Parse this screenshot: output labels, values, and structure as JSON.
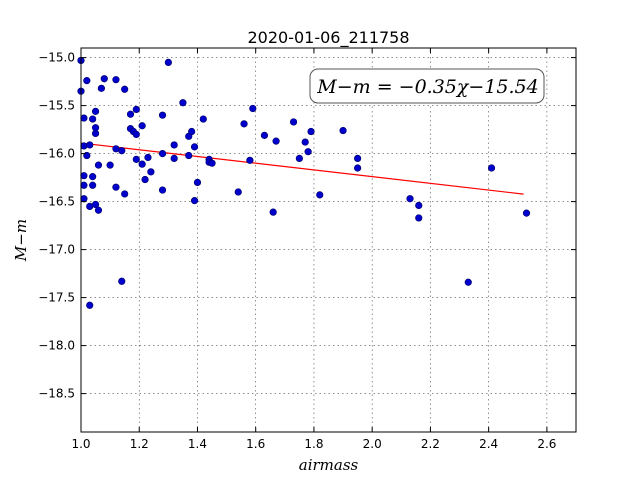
{
  "chart_data": {
    "type": "scatter",
    "title": "2020-01-06_211758",
    "xlabel": "airmass",
    "ylabel": "M−m",
    "xlim": [
      1.0,
      2.7
    ],
    "ylim": [
      -18.9,
      -14.9
    ],
    "y_inverted": true,
    "grid": true,
    "x_ticks": [
      1.0,
      1.2,
      1.4,
      1.6,
      1.8,
      2.0,
      2.2,
      2.4,
      2.6
    ],
    "x_tick_labels": [
      "1.0",
      "1.2",
      "1.4",
      "1.6",
      "1.8",
      "2.0",
      "2.2",
      "2.4",
      "2.6"
    ],
    "y_ticks": [
      -15.0,
      -15.5,
      -16.0,
      -16.5,
      -17.0,
      -17.5,
      -18.0,
      -18.5
    ],
    "y_tick_labels": [
      "−15.0",
      "−15.5",
      "−16.0",
      "−16.5",
      "−17.0",
      "−17.5",
      "−18.0",
      "−18.5"
    ],
    "annotation": "M−m = −0.35χ−15.54",
    "annotation_placement": "top-right",
    "fit": {
      "slope": -0.35,
      "intercept": -15.54,
      "x_range": [
        1.0,
        2.52
      ],
      "color": "#ff0000"
    },
    "series": [
      {
        "color": "#0000cc",
        "points": [
          [
            1.0,
            -15.03
          ],
          [
            1.0,
            -15.35
          ],
          [
            1.01,
            -15.63
          ],
          [
            1.01,
            -15.92
          ],
          [
            1.01,
            -16.23
          ],
          [
            1.01,
            -16.33
          ],
          [
            1.01,
            -16.47
          ],
          [
            1.02,
            -16.02
          ],
          [
            1.02,
            -15.24
          ],
          [
            1.03,
            -15.91
          ],
          [
            1.03,
            -16.55
          ],
          [
            1.03,
            -17.58
          ],
          [
            1.04,
            -15.64
          ],
          [
            1.04,
            -16.24
          ],
          [
            1.04,
            -16.33
          ],
          [
            1.05,
            -15.79
          ],
          [
            1.05,
            -15.73
          ],
          [
            1.05,
            -15.56
          ],
          [
            1.05,
            -16.53
          ],
          [
            1.06,
            -16.12
          ],
          [
            1.06,
            -16.59
          ],
          [
            1.07,
            -15.32
          ],
          [
            1.08,
            -15.22
          ],
          [
            1.1,
            -16.12
          ],
          [
            1.12,
            -15.23
          ],
          [
            1.12,
            -15.95
          ],
          [
            1.12,
            -16.35
          ],
          [
            1.14,
            -17.33
          ],
          [
            1.14,
            -15.97
          ],
          [
            1.15,
            -16.42
          ],
          [
            1.15,
            -15.33
          ],
          [
            1.17,
            -15.59
          ],
          [
            1.17,
            -15.74
          ],
          [
            1.18,
            -15.77
          ],
          [
            1.19,
            -15.8
          ],
          [
            1.19,
            -15.54
          ],
          [
            1.19,
            -16.06
          ],
          [
            1.21,
            -16.11
          ],
          [
            1.21,
            -15.71
          ],
          [
            1.22,
            -16.27
          ],
          [
            1.23,
            -16.04
          ],
          [
            1.24,
            -16.19
          ],
          [
            1.28,
            -15.6
          ],
          [
            1.28,
            -16.0
          ],
          [
            1.28,
            -16.38
          ],
          [
            1.3,
            -15.05
          ],
          [
            1.32,
            -16.05
          ],
          [
            1.32,
            -15.91
          ],
          [
            1.35,
            -15.47
          ],
          [
            1.37,
            -15.82
          ],
          [
            1.37,
            -16.02
          ],
          [
            1.38,
            -15.77
          ],
          [
            1.39,
            -16.49
          ],
          [
            1.39,
            -15.93
          ],
          [
            1.4,
            -16.3
          ],
          [
            1.42,
            -15.64
          ],
          [
            1.44,
            -16.06
          ],
          [
            1.44,
            -16.09
          ],
          [
            1.45,
            -16.1
          ],
          [
            1.54,
            -16.4
          ],
          [
            1.56,
            -15.69
          ],
          [
            1.58,
            -16.07
          ],
          [
            1.59,
            -15.53
          ],
          [
            1.63,
            -15.81
          ],
          [
            1.66,
            -16.61
          ],
          [
            1.67,
            -15.87
          ],
          [
            1.73,
            -15.67
          ],
          [
            1.75,
            -16.05
          ],
          [
            1.77,
            -15.88
          ],
          [
            1.78,
            -15.98
          ],
          [
            1.79,
            -15.77
          ],
          [
            1.82,
            -16.43
          ],
          [
            1.9,
            -15.76
          ],
          [
            1.95,
            -16.05
          ],
          [
            1.95,
            -16.15
          ],
          [
            2.13,
            -16.47
          ],
          [
            2.16,
            -16.67
          ],
          [
            2.16,
            -16.54
          ],
          [
            2.33,
            -17.34
          ],
          [
            2.41,
            -16.15
          ],
          [
            2.53,
            -16.62
          ]
        ]
      }
    ]
  }
}
